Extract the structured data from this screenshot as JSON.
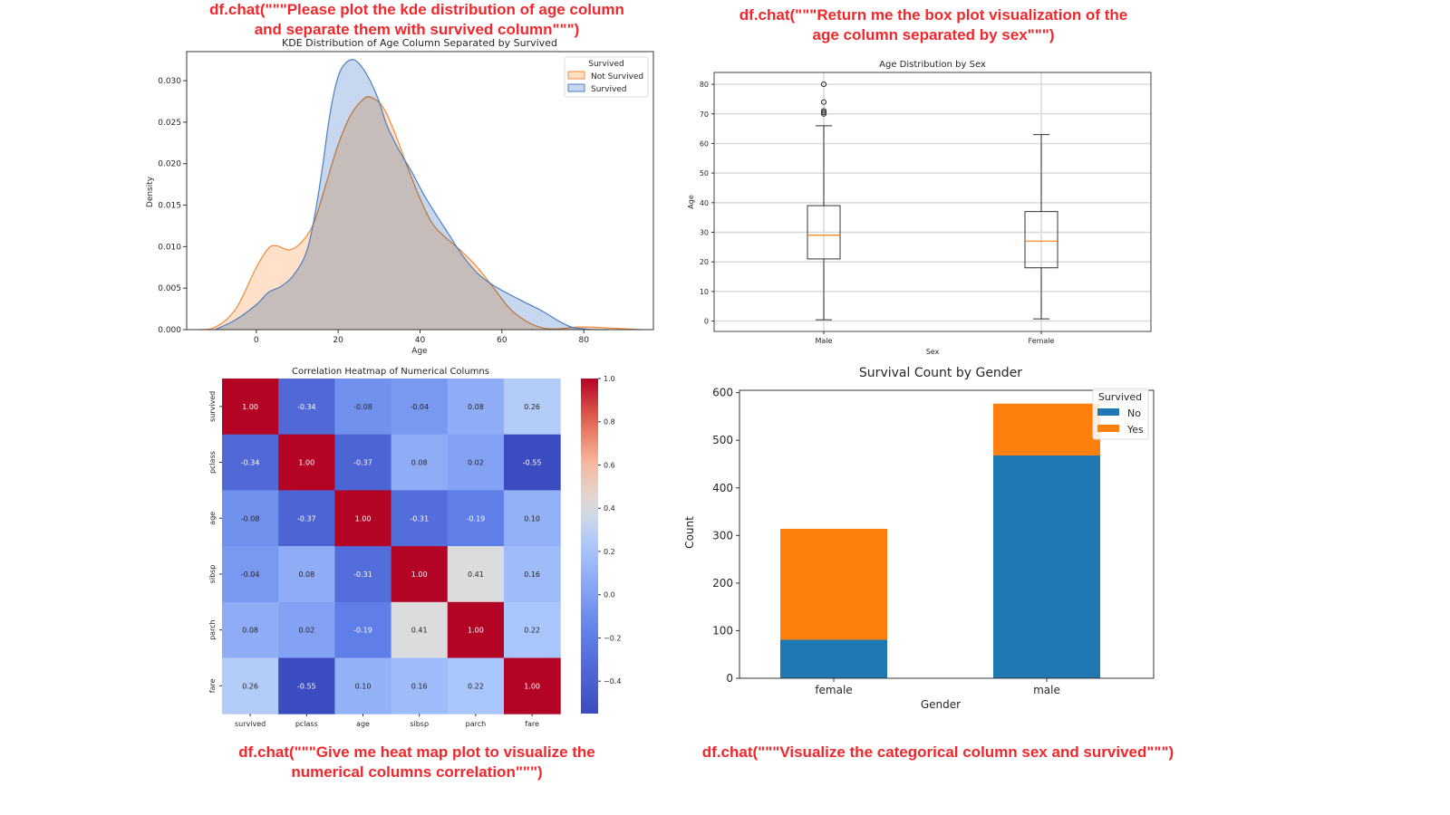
{
  "captions": {
    "kde": "df.chat(\"\"\"Please plot the kde distribution of age column and separate them with survived column\"\"\")",
    "box": "df.chat(\"\"\"Return me the box plot visualization of the age column separated by sex\"\"\")",
    "heatmap": "df.chat(\"\"\"Give me heat map plot to visualize the numerical columns correlation\"\"\")",
    "bar": "df.chat(\"\"\"Visualize the categorical column sex and survived\"\"\")"
  },
  "colors": {
    "caption": "#f0282d",
    "not_survived": "#ee8a3a",
    "survived": "#4a7fc0",
    "bar_no": "#1f77b4",
    "bar_yes": "#ff7f0e",
    "median": "#ff7f0e"
  },
  "chart_data": [
    {
      "type": "area",
      "title": "KDE Distribution of Age Column Separated by Survived",
      "xlabel": "Age",
      "ylabel": "Density",
      "xlim": [
        -17,
        97
      ],
      "ylim": [
        0,
        0.0335
      ],
      "xticks": [
        0,
        20,
        40,
        60,
        80
      ],
      "yticks": [
        "0.000",
        "0.005",
        "0.010",
        "0.015",
        "0.020",
        "0.025",
        "0.030"
      ],
      "legend": {
        "title": "Survived",
        "entries": [
          "Not Survived",
          "Survived"
        ],
        "placement": "top-right"
      },
      "series": [
        {
          "name": "Not Survived",
          "x": [
            -14,
            -10,
            -5,
            0,
            3,
            5,
            8,
            11,
            14,
            17,
            20,
            23,
            26,
            28,
            31,
            34,
            37,
            40,
            43,
            46,
            50,
            54,
            58,
            62,
            66,
            70,
            74,
            78,
            82,
            86,
            90,
            94
          ],
          "y": [
            0.0,
            0.0003,
            0.0025,
            0.0075,
            0.0098,
            0.0101,
            0.0096,
            0.0105,
            0.0128,
            0.0175,
            0.0223,
            0.0258,
            0.0277,
            0.028,
            0.0268,
            0.0235,
            0.0195,
            0.0158,
            0.0128,
            0.0112,
            0.0095,
            0.0075,
            0.005,
            0.0025,
            0.001,
            0.0002,
            0.0001,
            0.0003,
            0.0003,
            0.0002,
            0.0001,
            0.0
          ]
        },
        {
          "name": "Survived",
          "x": [
            -10,
            -5,
            0,
            3,
            6,
            9,
            12,
            14,
            16,
            18,
            20,
            22,
            24,
            26,
            28,
            30,
            32,
            35,
            38,
            41,
            44,
            47,
            50,
            54,
            58,
            62,
            66,
            70,
            74,
            77,
            80,
            83,
            86
          ],
          "y": [
            0.0,
            0.0012,
            0.003,
            0.0045,
            0.0052,
            0.0065,
            0.009,
            0.013,
            0.019,
            0.026,
            0.0305,
            0.0322,
            0.0325,
            0.0315,
            0.0298,
            0.0275,
            0.0245,
            0.0215,
            0.019,
            0.0162,
            0.0138,
            0.0115,
            0.0092,
            0.0068,
            0.0053,
            0.0042,
            0.0032,
            0.0022,
            0.001,
            0.0003,
            0.0001,
            0.0,
            0.0
          ]
        }
      ]
    },
    {
      "type": "box",
      "title": "Age Distribution by Sex",
      "xlabel": "Sex",
      "ylabel": "Age",
      "ylim": [
        -3.5,
        84
      ],
      "yticks": [
        0,
        10,
        20,
        30,
        40,
        50,
        60,
        70,
        80
      ],
      "grid": true,
      "categories": [
        "Male",
        "Female"
      ],
      "boxes": [
        {
          "name": "Male",
          "whisker_low": 0.42,
          "q1": 21,
          "median": 29,
          "q3": 39,
          "whisker_high": 66,
          "outliers": [
            70,
            70.5,
            71,
            74,
            80
          ]
        },
        {
          "name": "Female",
          "whisker_low": 0.75,
          "q1": 18,
          "median": 27,
          "q3": 37,
          "whisker_high": 63,
          "outliers": []
        }
      ]
    },
    {
      "type": "heatmap",
      "title": "Correlation Heatmap of Numerical Columns",
      "labels": [
        "survived",
        "pclass",
        "age",
        "sibsp",
        "parch",
        "fare"
      ],
      "values": [
        [
          1.0,
          -0.34,
          -0.08,
          -0.04,
          0.08,
          0.26
        ],
        [
          -0.34,
          1.0,
          -0.37,
          0.08,
          0.02,
          -0.55
        ],
        [
          -0.08,
          -0.37,
          1.0,
          -0.31,
          -0.19,
          0.1
        ],
        [
          -0.04,
          0.08,
          -0.31,
          1.0,
          0.41,
          0.16
        ],
        [
          0.08,
          0.02,
          -0.19,
          0.41,
          1.0,
          0.22
        ],
        [
          0.26,
          -0.55,
          0.1,
          0.16,
          0.22,
          1.0
        ]
      ],
      "colorbar": {
        "min": -0.55,
        "max": 1.0,
        "ticks": [
          "1.0",
          "0.8",
          "0.6",
          "0.4",
          "0.2",
          "0.0",
          "−0.2",
          "−0.4"
        ],
        "tick_values": [
          1.0,
          0.8,
          0.6,
          0.4,
          0.2,
          0.0,
          -0.2,
          -0.4
        ]
      }
    },
    {
      "type": "bar",
      "stacked": true,
      "title": "Survival Count by Gender",
      "xlabel": "Gender",
      "ylabel": "Count",
      "ylim": [
        0,
        605
      ],
      "yticks": [
        0,
        100,
        200,
        300,
        400,
        500,
        600
      ],
      "categories": [
        "female",
        "male"
      ],
      "legend": {
        "title": "Survived",
        "placement": "top-right"
      },
      "series": [
        {
          "name": "No",
          "values": [
            81,
            468
          ]
        },
        {
          "name": "Yes",
          "values": [
            233,
            109
          ]
        }
      ]
    }
  ]
}
